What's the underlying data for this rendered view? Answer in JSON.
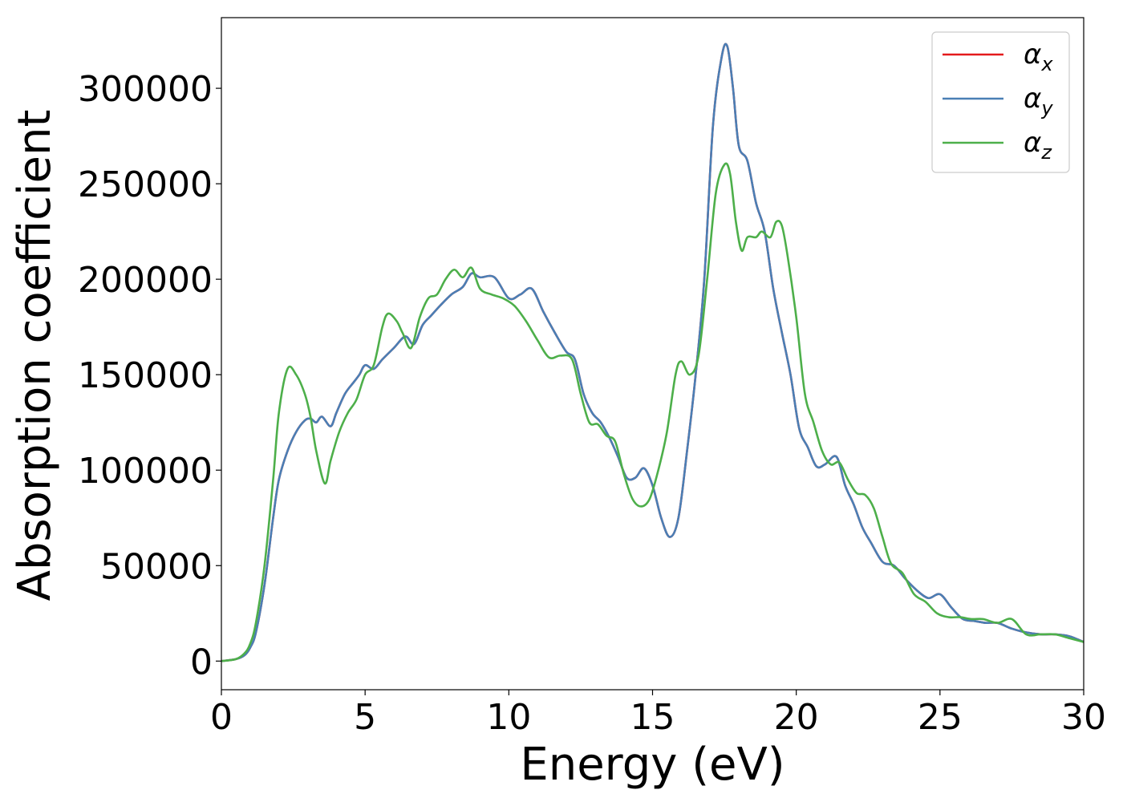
{
  "chart_data": {
    "type": "line",
    "title": "",
    "xlabel": "Energy (eV)",
    "ylabel": "Absorption coefficient",
    "xlim": [
      0,
      30
    ],
    "ylim": [
      -15000,
      337000
    ],
    "xticks": [
      0,
      5,
      10,
      15,
      20,
      25,
      30
    ],
    "xtick_labels": [
      "0",
      "5",
      "10",
      "15",
      "20",
      "25",
      "30"
    ],
    "yticks": [
      0,
      50000,
      100000,
      150000,
      200000,
      250000,
      300000
    ],
    "ytick_labels": [
      "0",
      "50000",
      "100000",
      "150000",
      "200000",
      "250000",
      "300000"
    ],
    "grid": false,
    "legend_position": "top-right",
    "series": [
      {
        "name": "α_x",
        "legend_symbol": "α",
        "legend_subscript": "x",
        "color": "#e41a1c",
        "x": [
          0,
          0.5,
          0.8,
          1.0,
          1.2,
          1.5,
          1.8,
          2.0,
          2.3,
          2.6,
          2.9,
          3.1,
          3.3,
          3.5,
          3.8,
          4.0,
          4.3,
          4.6,
          4.8,
          5.0,
          5.3,
          5.6,
          6.0,
          6.4,
          6.7,
          7.0,
          7.3,
          7.6,
          8.0,
          8.4,
          8.7,
          9.0,
          9.5,
          10.0,
          10.4,
          10.8,
          11.2,
          11.6,
          12.0,
          12.3,
          12.6,
          12.9,
          13.2,
          13.5,
          13.8,
          14.1,
          14.4,
          14.7,
          15.0,
          15.3,
          15.6,
          15.9,
          16.2,
          16.5,
          16.8,
          17.1,
          17.4,
          17.6,
          17.8,
          18.0,
          18.3,
          18.6,
          18.9,
          19.2,
          19.5,
          19.8,
          20.1,
          20.4,
          20.7,
          21.0,
          21.4,
          21.7,
          22.0,
          22.3,
          22.6,
          23.0,
          23.4,
          23.8,
          24.2,
          24.6,
          25.0,
          25.4,
          25.8,
          26.2,
          26.6,
          27.0,
          27.5,
          28.0,
          28.5,
          29.0,
          29.5,
          30.0
        ],
        "y": [
          0,
          1000,
          3000,
          7000,
          15000,
          40000,
          75000,
          95000,
          110000,
          120000,
          126000,
          127000,
          125000,
          128000,
          123000,
          130000,
          140000,
          146000,
          150000,
          155000,
          153000,
          158000,
          164000,
          170000,
          166000,
          176000,
          181000,
          186000,
          192000,
          196000,
          203000,
          201000,
          201000,
          190000,
          192000,
          195000,
          183000,
          172000,
          162000,
          158000,
          140000,
          130000,
          125000,
          117000,
          107000,
          96000,
          96000,
          101000,
          92000,
          75000,
          65000,
          75000,
          110000,
          150000,
          200000,
          280000,
          316000,
          322000,
          300000,
          270000,
          262000,
          240000,
          225000,
          195000,
          172000,
          150000,
          122000,
          112000,
          102000,
          103000,
          107000,
          92000,
          82000,
          70000,
          62000,
          52000,
          50000,
          43000,
          37000,
          33000,
          35000,
          28000,
          22000,
          21000,
          20000,
          20000,
          17000,
          15000,
          14000,
          14000,
          13000,
          10000
        ]
      },
      {
        "name": "α_y",
        "legend_symbol": "α",
        "legend_subscript": "y",
        "color": "#4a7fb5",
        "x": [
          0,
          0.5,
          0.8,
          1.0,
          1.2,
          1.5,
          1.8,
          2.0,
          2.3,
          2.6,
          2.9,
          3.1,
          3.3,
          3.5,
          3.8,
          4.0,
          4.3,
          4.6,
          4.8,
          5.0,
          5.3,
          5.6,
          6.0,
          6.4,
          6.7,
          7.0,
          7.3,
          7.6,
          8.0,
          8.4,
          8.7,
          9.0,
          9.5,
          10.0,
          10.4,
          10.8,
          11.2,
          11.6,
          12.0,
          12.3,
          12.6,
          12.9,
          13.2,
          13.5,
          13.8,
          14.1,
          14.4,
          14.7,
          15.0,
          15.3,
          15.6,
          15.9,
          16.2,
          16.5,
          16.8,
          17.1,
          17.4,
          17.6,
          17.8,
          18.0,
          18.3,
          18.6,
          18.9,
          19.2,
          19.5,
          19.8,
          20.1,
          20.4,
          20.7,
          21.0,
          21.4,
          21.7,
          22.0,
          22.3,
          22.6,
          23.0,
          23.4,
          23.8,
          24.2,
          24.6,
          25.0,
          25.4,
          25.8,
          26.2,
          26.6,
          27.0,
          27.5,
          28.0,
          28.5,
          29.0,
          29.5,
          30.0
        ],
        "y": [
          0,
          1000,
          3000,
          7000,
          15000,
          40000,
          75000,
          95000,
          110000,
          120000,
          126000,
          127000,
          125000,
          128000,
          123000,
          130000,
          140000,
          146000,
          150000,
          155000,
          153000,
          158000,
          164000,
          170000,
          166000,
          176000,
          181000,
          186000,
          192000,
          196000,
          203000,
          201000,
          201000,
          190000,
          192000,
          195000,
          183000,
          172000,
          162000,
          158000,
          140000,
          130000,
          125000,
          117000,
          107000,
          96000,
          96000,
          101000,
          92000,
          75000,
          65000,
          75000,
          110000,
          150000,
          200000,
          280000,
          316000,
          322000,
          300000,
          270000,
          262000,
          240000,
          225000,
          195000,
          172000,
          150000,
          122000,
          112000,
          102000,
          103000,
          107000,
          92000,
          82000,
          70000,
          62000,
          52000,
          50000,
          43000,
          37000,
          33000,
          35000,
          28000,
          22000,
          21000,
          20000,
          20000,
          17000,
          15000,
          14000,
          14000,
          13000,
          10000
        ]
      },
      {
        "name": "α_z",
        "legend_symbol": "α",
        "legend_subscript": "z",
        "color": "#4daf4a",
        "x": [
          0,
          0.5,
          0.8,
          1.0,
          1.2,
          1.5,
          1.8,
          2.0,
          2.3,
          2.6,
          2.9,
          3.1,
          3.3,
          3.6,
          3.8,
          4.1,
          4.4,
          4.7,
          5.0,
          5.3,
          5.6,
          5.8,
          6.1,
          6.3,
          6.6,
          6.9,
          7.2,
          7.5,
          7.8,
          8.1,
          8.4,
          8.7,
          9.0,
          9.4,
          9.8,
          10.2,
          10.6,
          11.0,
          11.4,
          11.8,
          12.2,
          12.5,
          12.8,
          13.1,
          13.4,
          13.7,
          14.0,
          14.3,
          14.6,
          14.9,
          15.2,
          15.5,
          15.8,
          16.0,
          16.3,
          16.6,
          16.9,
          17.2,
          17.5,
          17.7,
          17.9,
          18.1,
          18.3,
          18.6,
          18.8,
          19.1,
          19.3,
          19.5,
          19.7,
          20.0,
          20.3,
          20.6,
          20.9,
          21.2,
          21.5,
          21.8,
          22.1,
          22.4,
          22.7,
          23.0,
          23.3,
          23.7,
          24.1,
          24.5,
          24.9,
          25.3,
          25.7,
          26.1,
          26.5,
          27.0,
          27.5,
          28.0,
          28.5,
          29.0,
          29.5,
          30.0
        ],
        "y": [
          0,
          1000,
          4000,
          9000,
          20000,
          50000,
          95000,
          130000,
          153000,
          150000,
          140000,
          128000,
          110000,
          93000,
          105000,
          120000,
          130000,
          137000,
          150000,
          155000,
          175000,
          182000,
          178000,
          172000,
          164000,
          180000,
          190000,
          192000,
          200000,
          205000,
          201000,
          206000,
          195000,
          192000,
          190000,
          186000,
          178000,
          168000,
          159000,
          160000,
          158000,
          140000,
          125000,
          124000,
          118000,
          115000,
          98000,
          85000,
          81000,
          85000,
          100000,
          120000,
          150000,
          157000,
          150000,
          160000,
          200000,
          245000,
          260000,
          255000,
          230000,
          215000,
          222000,
          222000,
          225000,
          222000,
          230000,
          228000,
          212000,
          180000,
          140000,
          125000,
          110000,
          103000,
          104000,
          95000,
          88000,
          87000,
          80000,
          65000,
          51000,
          46000,
          35000,
          31000,
          25000,
          23000,
          23000,
          22000,
          22000,
          20000,
          22000,
          14000,
          14000,
          14000,
          12000,
          10000
        ]
      }
    ]
  }
}
